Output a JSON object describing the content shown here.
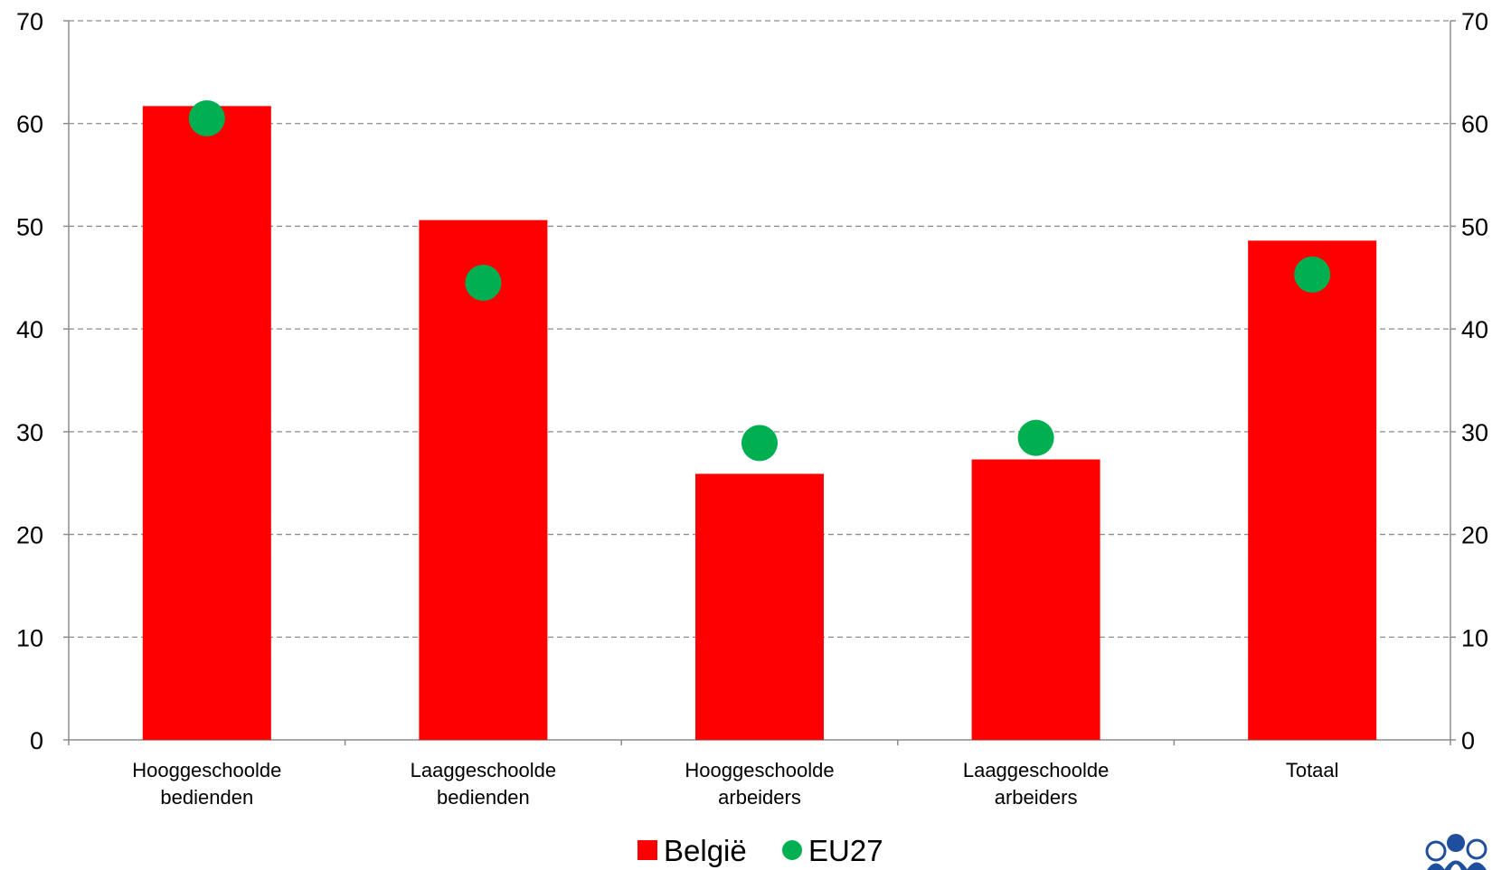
{
  "chart_data": {
    "type": "bar",
    "categories": [
      [
        "Hooggeschoolde",
        "bedienden"
      ],
      [
        "Laaggeschoolde",
        "bedienden"
      ],
      [
        "Hooggeschoolde",
        "arbeiders"
      ],
      [
        "Laaggeschoolde",
        "arbeiders"
      ],
      [
        "Totaal"
      ]
    ],
    "series": [
      {
        "name": "België",
        "kind": "bar",
        "color": "#ff0000",
        "values": [
          61.7,
          50.6,
          25.9,
          27.3,
          48.6
        ]
      },
      {
        "name": "EU27",
        "kind": "point",
        "color": "#00b050",
        "values": [
          60.5,
          44.5,
          28.9,
          29.4,
          45.3
        ]
      }
    ],
    "ylim": [
      0,
      70
    ],
    "yticks": [
      0,
      10,
      20,
      30,
      40,
      50,
      60,
      70
    ],
    "secondary_axis": true,
    "grid": "dashed-horizontal",
    "legend_position": "bottom-center",
    "title": "",
    "xlabel": "",
    "ylabel": ""
  },
  "logo": {
    "icon": "people-group-logo",
    "color": "#1f4e9c"
  }
}
